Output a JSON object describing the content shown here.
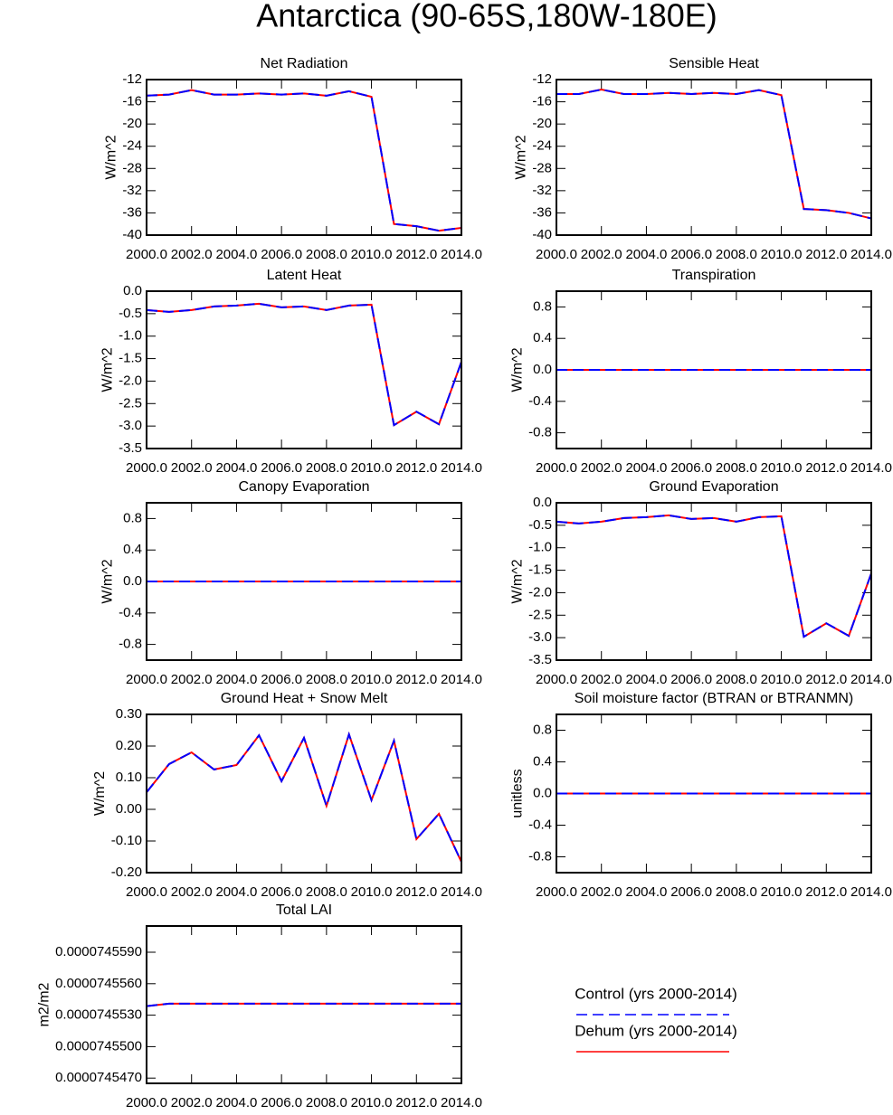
{
  "title": "Antarctica (90-65S,180W-180E)",
  "chart_data": [
    {
      "type": "line",
      "title": "Net Radiation",
      "y_label": "W/m^2",
      "x": [
        2000,
        2001,
        2002,
        2003,
        2004,
        2005,
        2006,
        2007,
        2008,
        2009,
        2010,
        2011,
        2012,
        2013,
        2014
      ],
      "xlim": [
        2000,
        2014
      ],
      "xticks": [
        {
          "value": 2000,
          "label": "2000.0"
        },
        {
          "value": 2002,
          "label": "2002.0"
        },
        {
          "value": 2004,
          "label": "2004.0"
        },
        {
          "value": 2006,
          "label": "2006.0"
        },
        {
          "value": 2008,
          "label": "2008.0"
        },
        {
          "value": 2010,
          "label": "2010.0"
        },
        {
          "value": 2012,
          "label": "2012.0"
        },
        {
          "value": 2014,
          "label": "2014.0"
        }
      ],
      "ylim": [
        -40,
        -12
      ],
      "yticks": [
        -12,
        -16,
        -20,
        -24,
        -28,
        -32,
        -36,
        -40
      ],
      "series": [
        {
          "name": "Control (yrs 2000-2014)",
          "color": "#0000ff",
          "dashed": true,
          "values": [
            -14.9,
            -14.7,
            -13.9,
            -14.7,
            -14.7,
            -14.5,
            -14.7,
            -14.5,
            -14.9,
            -14.1,
            -15.1,
            -38.0,
            -38.4,
            -39.2,
            -38.7
          ]
        },
        {
          "name": "Dehum (yrs 2000-2014)",
          "color": "#ff0000",
          "dashed": false,
          "values": [
            -14.9,
            -14.7,
            -13.9,
            -14.7,
            -14.7,
            -14.5,
            -14.7,
            -14.5,
            -14.9,
            -14.1,
            -15.1,
            -38.0,
            -38.4,
            -39.2,
            -38.7
          ]
        }
      ]
    },
    {
      "type": "line",
      "title": "Sensible Heat",
      "y_label": "W/m^2",
      "x": [
        2000,
        2001,
        2002,
        2003,
        2004,
        2005,
        2006,
        2007,
        2008,
        2009,
        2010,
        2011,
        2012,
        2013,
        2014
      ],
      "xlim": [
        2000,
        2014
      ],
      "xticks": [
        {
          "value": 2000,
          "label": "2000.0"
        },
        {
          "value": 2002,
          "label": "2002.0"
        },
        {
          "value": 2004,
          "label": "2004.0"
        },
        {
          "value": 2006,
          "label": "2006.0"
        },
        {
          "value": 2008,
          "label": "2008.0"
        },
        {
          "value": 2010,
          "label": "2010.0"
        },
        {
          "value": 2012,
          "label": "2012.0"
        },
        {
          "value": 2014,
          "label": "2014.0"
        }
      ],
      "ylim": [
        -40,
        -12
      ],
      "yticks": [
        -12,
        -16,
        -20,
        -24,
        -28,
        -32,
        -36,
        -40
      ],
      "series": [
        {
          "name": "Control (yrs 2000-2014)",
          "color": "#0000ff",
          "dashed": true,
          "values": [
            -14.6,
            -14.6,
            -13.8,
            -14.6,
            -14.6,
            -14.4,
            -14.6,
            -14.4,
            -14.6,
            -13.9,
            -14.8,
            -35.3,
            -35.5,
            -36.0,
            -37.0
          ]
        },
        {
          "name": "Dehum (yrs 2000-2014)",
          "color": "#ff0000",
          "dashed": false,
          "values": [
            -14.6,
            -14.6,
            -13.8,
            -14.6,
            -14.6,
            -14.4,
            -14.6,
            -14.4,
            -14.6,
            -13.9,
            -14.8,
            -35.3,
            -35.5,
            -36.0,
            -37.0
          ]
        }
      ]
    },
    {
      "type": "line",
      "title": "Latent Heat",
      "y_label": "W/m^2",
      "x": [
        2000,
        2001,
        2002,
        2003,
        2004,
        2005,
        2006,
        2007,
        2008,
        2009,
        2010,
        2011,
        2012,
        2013,
        2014
      ],
      "xlim": [
        2000,
        2014
      ],
      "xticks": [
        {
          "value": 2000,
          "label": "2000.0"
        },
        {
          "value": 2002,
          "label": "2002.0"
        },
        {
          "value": 2004,
          "label": "2004.0"
        },
        {
          "value": 2006,
          "label": "2006.0"
        },
        {
          "value": 2008,
          "label": "2008.0"
        },
        {
          "value": 2010,
          "label": "2010.0"
        },
        {
          "value": 2012,
          "label": "2012.0"
        },
        {
          "value": 2014,
          "label": "2014.0"
        }
      ],
      "ylim": [
        -3.5,
        0
      ],
      "yticks": [
        {
          "value": 0,
          "label": "0.0"
        },
        -0.5,
        {
          "value": -1,
          "label": "-1.0"
        },
        -1.5,
        {
          "value": -2,
          "label": "-2.0"
        },
        -2.5,
        {
          "value": -3,
          "label": "-3.0"
        },
        -3.5
      ],
      "series": [
        {
          "name": "Control (yrs 2000-2014)",
          "color": "#0000ff",
          "dashed": true,
          "values": [
            -0.42,
            -0.46,
            -0.42,
            -0.34,
            -0.32,
            -0.28,
            -0.36,
            -0.34,
            -0.42,
            -0.32,
            -0.3,
            -2.98,
            -2.68,
            -2.96,
            -1.57
          ]
        },
        {
          "name": "Dehum (yrs 2000-2014)",
          "color": "#ff0000",
          "dashed": false,
          "values": [
            -0.42,
            -0.46,
            -0.42,
            -0.34,
            -0.32,
            -0.28,
            -0.36,
            -0.34,
            -0.42,
            -0.32,
            -0.3,
            -2.98,
            -2.68,
            -2.96,
            -1.57
          ]
        }
      ]
    },
    {
      "type": "line",
      "title": "Transpiration",
      "y_label": "W/m^2",
      "x": [
        2000,
        2001,
        2002,
        2003,
        2004,
        2005,
        2006,
        2007,
        2008,
        2009,
        2010,
        2011,
        2012,
        2013,
        2014
      ],
      "xlim": [
        2000,
        2014
      ],
      "xticks": [
        {
          "value": 2000,
          "label": "2000.0"
        },
        {
          "value": 2002,
          "label": "2002.0"
        },
        {
          "value": 2004,
          "label": "2004.0"
        },
        {
          "value": 2006,
          "label": "2006.0"
        },
        {
          "value": 2008,
          "label": "2008.0"
        },
        {
          "value": 2010,
          "label": "2010.0"
        },
        {
          "value": 2012,
          "label": "2012.0"
        },
        {
          "value": 2014,
          "label": "2014.0"
        }
      ],
      "ylim": [
        -1,
        1
      ],
      "yticks": [
        0.8,
        0.4,
        {
          "value": 0,
          "label": "0.0"
        },
        -0.4,
        -0.8
      ],
      "series": [
        {
          "name": "Control (yrs 2000-2014)",
          "color": "#0000ff",
          "dashed": true,
          "values": [
            0,
            0,
            0,
            0,
            0,
            0,
            0,
            0,
            0,
            0,
            0,
            0,
            0,
            0,
            0
          ]
        },
        {
          "name": "Dehum (yrs 2000-2014)",
          "color": "#ff0000",
          "dashed": false,
          "values": [
            0,
            0,
            0,
            0,
            0,
            0,
            0,
            0,
            0,
            0,
            0,
            0,
            0,
            0,
            0
          ]
        }
      ]
    },
    {
      "type": "line",
      "title": "Canopy Evaporation",
      "y_label": "W/m^2",
      "x": [
        2000,
        2001,
        2002,
        2003,
        2004,
        2005,
        2006,
        2007,
        2008,
        2009,
        2010,
        2011,
        2012,
        2013,
        2014
      ],
      "xlim": [
        2000,
        2014
      ],
      "xticks": [
        {
          "value": 2000,
          "label": "2000.0"
        },
        {
          "value": 2002,
          "label": "2002.0"
        },
        {
          "value": 2004,
          "label": "2004.0"
        },
        {
          "value": 2006,
          "label": "2006.0"
        },
        {
          "value": 2008,
          "label": "2008.0"
        },
        {
          "value": 2010,
          "label": "2010.0"
        },
        {
          "value": 2012,
          "label": "2012.0"
        },
        {
          "value": 2014,
          "label": "2014.0"
        }
      ],
      "ylim": [
        -1,
        1
      ],
      "yticks": [
        0.8,
        0.4,
        {
          "value": 0,
          "label": "0.0"
        },
        -0.4,
        -0.8
      ],
      "series": [
        {
          "name": "Control (yrs 2000-2014)",
          "color": "#0000ff",
          "dashed": true,
          "values": [
            0,
            0,
            0,
            0,
            0,
            0,
            0,
            0,
            0,
            0,
            0,
            0,
            0,
            0,
            0
          ]
        },
        {
          "name": "Dehum (yrs 2000-2014)",
          "color": "#ff0000",
          "dashed": false,
          "values": [
            0,
            0,
            0,
            0,
            0,
            0,
            0,
            0,
            0,
            0,
            0,
            0,
            0,
            0,
            0
          ]
        }
      ]
    },
    {
      "type": "line",
      "title": "Ground Evaporation",
      "y_label": "W/m^2",
      "x": [
        2000,
        2001,
        2002,
        2003,
        2004,
        2005,
        2006,
        2007,
        2008,
        2009,
        2010,
        2011,
        2012,
        2013,
        2014
      ],
      "xlim": [
        2000,
        2014
      ],
      "xticks": [
        {
          "value": 2000,
          "label": "2000.0"
        },
        {
          "value": 2002,
          "label": "2002.0"
        },
        {
          "value": 2004,
          "label": "2004.0"
        },
        {
          "value": 2006,
          "label": "2006.0"
        },
        {
          "value": 2008,
          "label": "2008.0"
        },
        {
          "value": 2010,
          "label": "2010.0"
        },
        {
          "value": 2012,
          "label": "2012.0"
        },
        {
          "value": 2014,
          "label": "2014.0"
        }
      ],
      "ylim": [
        -3.5,
        0
      ],
      "yticks": [
        {
          "value": 0,
          "label": "0.0"
        },
        -0.5,
        {
          "value": -1,
          "label": "-1.0"
        },
        -1.5,
        {
          "value": -2,
          "label": "-2.0"
        },
        -2.5,
        {
          "value": -3,
          "label": "-3.0"
        },
        -3.5
      ],
      "series": [
        {
          "name": "Control (yrs 2000-2014)",
          "color": "#0000ff",
          "dashed": true,
          "values": [
            -0.42,
            -0.46,
            -0.42,
            -0.34,
            -0.32,
            -0.28,
            -0.36,
            -0.34,
            -0.42,
            -0.32,
            -0.3,
            -2.98,
            -2.68,
            -2.96,
            -1.57
          ]
        },
        {
          "name": "Dehum (yrs 2000-2014)",
          "color": "#ff0000",
          "dashed": false,
          "values": [
            -0.42,
            -0.46,
            -0.42,
            -0.34,
            -0.32,
            -0.28,
            -0.36,
            -0.34,
            -0.42,
            -0.32,
            -0.3,
            -2.98,
            -2.68,
            -2.96,
            -1.57
          ]
        }
      ]
    },
    {
      "type": "line",
      "title": "Ground Heat + Snow Melt",
      "y_label": "W/m^2",
      "x": [
        2000,
        2001,
        2002,
        2003,
        2004,
        2005,
        2006,
        2007,
        2008,
        2009,
        2010,
        2011,
        2012,
        2013,
        2014
      ],
      "xlim": [
        2000,
        2014
      ],
      "xticks": [
        {
          "value": 2000,
          "label": "2000.0"
        },
        {
          "value": 2002,
          "label": "2002.0"
        },
        {
          "value": 2004,
          "label": "2004.0"
        },
        {
          "value": 2006,
          "label": "2006.0"
        },
        {
          "value": 2008,
          "label": "2008.0"
        },
        {
          "value": 2010,
          "label": "2010.0"
        },
        {
          "value": 2012,
          "label": "2012.0"
        },
        {
          "value": 2014,
          "label": "2014.0"
        }
      ],
      "ylim": [
        -0.2,
        0.3
      ],
      "yticks": [
        {
          "value": 0.3,
          "label": "0.30"
        },
        {
          "value": 0.2,
          "label": "0.20"
        },
        {
          "value": 0.1,
          "label": "0.10"
        },
        {
          "value": 0,
          "label": "0.00"
        },
        {
          "value": -0.1,
          "label": "-0.10"
        },
        {
          "value": -0.2,
          "label": "-0.20"
        }
      ],
      "series": [
        {
          "name": "Control (yrs 2000-2014)",
          "color": "#0000ff",
          "dashed": true,
          "values": [
            0.054,
            0.143,
            0.18,
            0.126,
            0.14,
            0.234,
            0.089,
            0.226,
            0.011,
            0.237,
            0.029,
            0.217,
            -0.094,
            -0.014,
            -0.166
          ]
        },
        {
          "name": "Dehum (yrs 2000-2014)",
          "color": "#ff0000",
          "dashed": false,
          "values": [
            0.054,
            0.143,
            0.18,
            0.126,
            0.14,
            0.234,
            0.089,
            0.226,
            0.011,
            0.237,
            0.029,
            0.217,
            -0.094,
            -0.014,
            -0.166
          ]
        }
      ]
    },
    {
      "type": "line",
      "title": "Soil moisture factor (BTRAN or BTRANMN)",
      "y_label": "unitless",
      "x": [
        2000,
        2001,
        2002,
        2003,
        2004,
        2005,
        2006,
        2007,
        2008,
        2009,
        2010,
        2011,
        2012,
        2013,
        2014
      ],
      "xlim": [
        2000,
        2014
      ],
      "xticks": [
        {
          "value": 2000,
          "label": "2000.0"
        },
        {
          "value": 2002,
          "label": "2002.0"
        },
        {
          "value": 2004,
          "label": "2004.0"
        },
        {
          "value": 2006,
          "label": "2006.0"
        },
        {
          "value": 2008,
          "label": "2008.0"
        },
        {
          "value": 2010,
          "label": "2010.0"
        },
        {
          "value": 2012,
          "label": "2012.0"
        },
        {
          "value": 2014,
          "label": "2014.0"
        }
      ],
      "ylim": [
        -1,
        1
      ],
      "yticks": [
        0.8,
        0.4,
        {
          "value": 0,
          "label": "0.0"
        },
        -0.4,
        -0.8
      ],
      "series": [
        {
          "name": "Control (yrs 2000-2014)",
          "color": "#0000ff",
          "dashed": true,
          "values": [
            0,
            0,
            0,
            0,
            0,
            0,
            0,
            0,
            0,
            0,
            0,
            0,
            0,
            0,
            0
          ]
        },
        {
          "name": "Dehum (yrs 2000-2014)",
          "color": "#ff0000",
          "dashed": false,
          "values": [
            0,
            0,
            0,
            0,
            0,
            0,
            0,
            0,
            0,
            0,
            0,
            0,
            0,
            0,
            0
          ]
        }
      ]
    },
    {
      "type": "line",
      "title": "Total LAI",
      "y_label": "m2/m2",
      "x": [
        2000,
        2001,
        2002,
        2003,
        2004,
        2005,
        2006,
        2007,
        2008,
        2009,
        2010,
        2011,
        2012,
        2013,
        2014
      ],
      "xlim": [
        2000,
        2014
      ],
      "xticks": [
        {
          "value": 2000,
          "label": "2000.0"
        },
        {
          "value": 2002,
          "label": "2002.0"
        },
        {
          "value": 2004,
          "label": "2004.0"
        },
        {
          "value": 2006,
          "label": "2006.0"
        },
        {
          "value": 2008,
          "label": "2008.0"
        },
        {
          "value": 2010,
          "label": "2010.0"
        },
        {
          "value": 2012,
          "label": "2012.0"
        },
        {
          "value": 2014,
          "label": "2014.0"
        }
      ],
      "ylim": [
        7.45465e-05,
        7.45615e-05
      ],
      "yticks": [
        {
          "value": 7.4559e-05,
          "label": "0.0000745590"
        },
        {
          "value": 7.4556e-05,
          "label": "0.0000745560"
        },
        {
          "value": 7.4553e-05,
          "label": "0.0000745530"
        },
        {
          "value": 7.455e-05,
          "label": "0.0000745500"
        },
        {
          "value": 7.4547e-05,
          "label": "0.0000745470"
        }
      ],
      "series": [
        {
          "name": "Control (yrs 2000-2014)",
          "color": "#0000ff",
          "dashed": true,
          "values": [
            7.455386e-05,
            7.45541e-05,
            7.45541e-05,
            7.45541e-05,
            7.45541e-05,
            7.45541e-05,
            7.45541e-05,
            7.45541e-05,
            7.45541e-05,
            7.45541e-05,
            7.45541e-05,
            7.45541e-05,
            7.45541e-05,
            7.45541e-05,
            7.45541e-05
          ]
        },
        {
          "name": "Dehum (yrs 2000-2014)",
          "color": "#ff0000",
          "dashed": false,
          "values": [
            7.455386e-05,
            7.45541e-05,
            7.45541e-05,
            7.45541e-05,
            7.45541e-05,
            7.45541e-05,
            7.45541e-05,
            7.45541e-05,
            7.45541e-05,
            7.45541e-05,
            7.45541e-05,
            7.45541e-05,
            7.45541e-05,
            7.45541e-05,
            7.45541e-05
          ]
        }
      ]
    }
  ]
}
